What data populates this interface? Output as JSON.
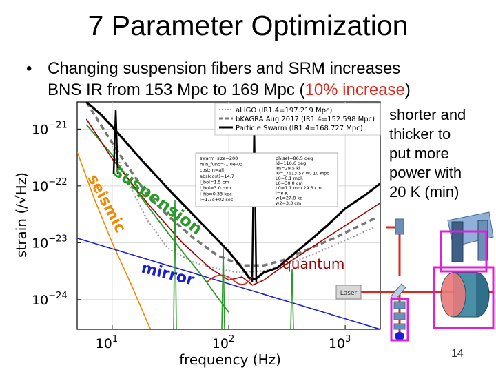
{
  "title": "7 Parameter Optimization",
  "bullet": {
    "marker": "•",
    "line1": "Changing suspension fibers and SRM increases",
    "line2_pre": "BNS IR from 153 Mpc to 169 Mpc (",
    "line2_highlight": "10% increase",
    "line2_post": ")"
  },
  "side_note": [
    "shorter and",
    "thicker to",
    "put more",
    "power with",
    "20 K (min)"
  ],
  "page_number": "14",
  "colors": {
    "accent_red": "#e0261b",
    "magenta": "#e020d8",
    "legend_dotted": "#9a9a9a",
    "legend_dashed": "#777777",
    "legend_solid": "#000000",
    "seismic": "#f08a00",
    "mirror": "#1a20d0",
    "quantum": "#a00000"
  },
  "chart_data": {
    "type": "line",
    "xscale": "log",
    "yscale": "log",
    "xlim": [
      5,
      2000
    ],
    "ylim": [
      3e-25,
      3e-21
    ],
    "xlabel": "frequency (Hz)",
    "ylabel": "strain (/√Hz)",
    "x_ticks": [
      {
        "value": 10,
        "label": "10",
        "exp": "1"
      },
      {
        "value": 100,
        "label": "10",
        "exp": "2"
      },
      {
        "value": 1000,
        "label": "10",
        "exp": "3"
      }
    ],
    "y_ticks": [
      {
        "value": 1e-21,
        "label": "10",
        "exp": "−21"
      },
      {
        "value": 1e-22,
        "label": "10",
        "exp": "−22"
      },
      {
        "value": 1e-23,
        "label": "10",
        "exp": "−23"
      },
      {
        "value": 1e-24,
        "label": "10",
        "exp": "−24"
      }
    ],
    "legend": [
      {
        "label": "aLIGO (IR1.4=197.219 Mpc)",
        "style": "dotted"
      },
      {
        "label": "bKAGRA Aug 2017 (IR1.4=152.598 Mpc)",
        "style": "dashed"
      },
      {
        "label": "Particle Swarm (IR1.4=168.727 Mpc)",
        "style": "solid"
      }
    ],
    "param_box_left": [
      "swarm_size=200",
      "min_func=-1.0e-03",
      "cost: n=all",
      "abs(cost)=14.7",
      "l_bol=1.5 cm",
      "l_bol=3.0 mm",
      "l_fib=0.33 kpc",
      "l=1.7e+02 sec"
    ],
    "param_box_right": [
      "phiset=86.5 deg",
      "ld=116.6 deg",
      "lm=29.5 kl",
      "l0=_7613.57 W, 10 Mpc",
      "L0=0.1 mpl,",
      "L0=30.0 cm",
      "L0=1.1 mm 29.3 cm",
      "l=8 K",
      "w1=27.8 kg",
      "w2=3.3 cm"
    ],
    "series": [
      {
        "name": "bKAGRA Aug 2017",
        "style": "dashed",
        "x": [
          6,
          9,
          13,
          20,
          30,
          50,
          80,
          130,
          200,
          300,
          500,
          800,
          1200,
          1800
        ],
        "y": [
          3e-21,
          8e-22,
          2.5e-22,
          7e-23,
          3e-23,
          1.2e-23,
          6e-24,
          4e-24,
          4e-24,
          5e-24,
          8e-24,
          1.2e-23,
          1.8e-23,
          2.7e-23
        ]
      },
      {
        "name": "aLIGO",
        "style": "dotted",
        "x": [
          10,
          15,
          20,
          30,
          50,
          80,
          120,
          200,
          300,
          500,
          800,
          1200,
          1800
        ],
        "y": [
          5e-22,
          8e-23,
          2.5e-23,
          8e-24,
          4.5e-24,
          3.5e-24,
          3e-24,
          3.2e-24,
          4e-24,
          6e-24,
          9e-24,
          1.3e-23,
          1.9e-23
        ]
      },
      {
        "name": "Particle Swarm",
        "style": "solid",
        "x": [
          6,
          8,
          10,
          13,
          17,
          22,
          30,
          45,
          70,
          100,
          130,
          150,
          170,
          200,
          260,
          350,
          500,
          700,
          1000,
          1500,
          2000
        ],
        "y": [
          3e-21,
          1.8e-21,
          1.1e-21,
          6e-22,
          3.2e-22,
          1.8e-22,
          9e-23,
          3.8e-23,
          1.5e-23,
          7e-24,
          3.6e-24,
          2.4e-24,
          2.3e-24,
          3e-24,
          3.6e-24,
          6e-24,
          1.1e-23,
          2e-23,
          4e-23,
          7e-23,
          1.1e-22
        ]
      },
      {
        "name": "seismic",
        "style": "thin",
        "x": [
          5,
          7,
          10,
          15,
          20,
          25
        ],
        "y": [
          4e-22,
          6e-23,
          1e-23,
          1.6e-24,
          4e-25,
          1.5e-25
        ]
      },
      {
        "name": "suspension",
        "style": "thin",
        "x": [
          6,
          10,
          15,
          20,
          30,
          40,
          60,
          80,
          100
        ],
        "y": [
          1.2e-21,
          3.5e-22,
          1e-22,
          4.5e-23,
          1.5e-23,
          7e-24,
          2.5e-24,
          1.1e-24,
          6e-25
        ]
      },
      {
        "name": "mirror",
        "style": "thin",
        "x": [
          5,
          2000
        ],
        "y": [
          1.2e-23,
          3e-25
        ]
      },
      {
        "name": "quantum",
        "style": "thin",
        "x": [
          6,
          10,
          20,
          40,
          70,
          100,
          130,
          160,
          200,
          300,
          500,
          1000,
          2000
        ],
        "y": [
          1.5e-21,
          3e-22,
          5e-23,
          1e-23,
          3.5e-24,
          2.2e-24,
          2.5e-24,
          1.8e-24,
          2.2e-24,
          4e-24,
          8e-24,
          2e-23,
          5e-23
        ]
      }
    ],
    "annotations": [
      {
        "text": "seismic",
        "color": "seismic"
      },
      {
        "text": "suspension",
        "color": "suspension"
      },
      {
        "text": "mirror",
        "color": "mirror"
      },
      {
        "text": "quantum",
        "color": "quantum"
      }
    ]
  },
  "diagram": {
    "laser_label": "Laser"
  }
}
